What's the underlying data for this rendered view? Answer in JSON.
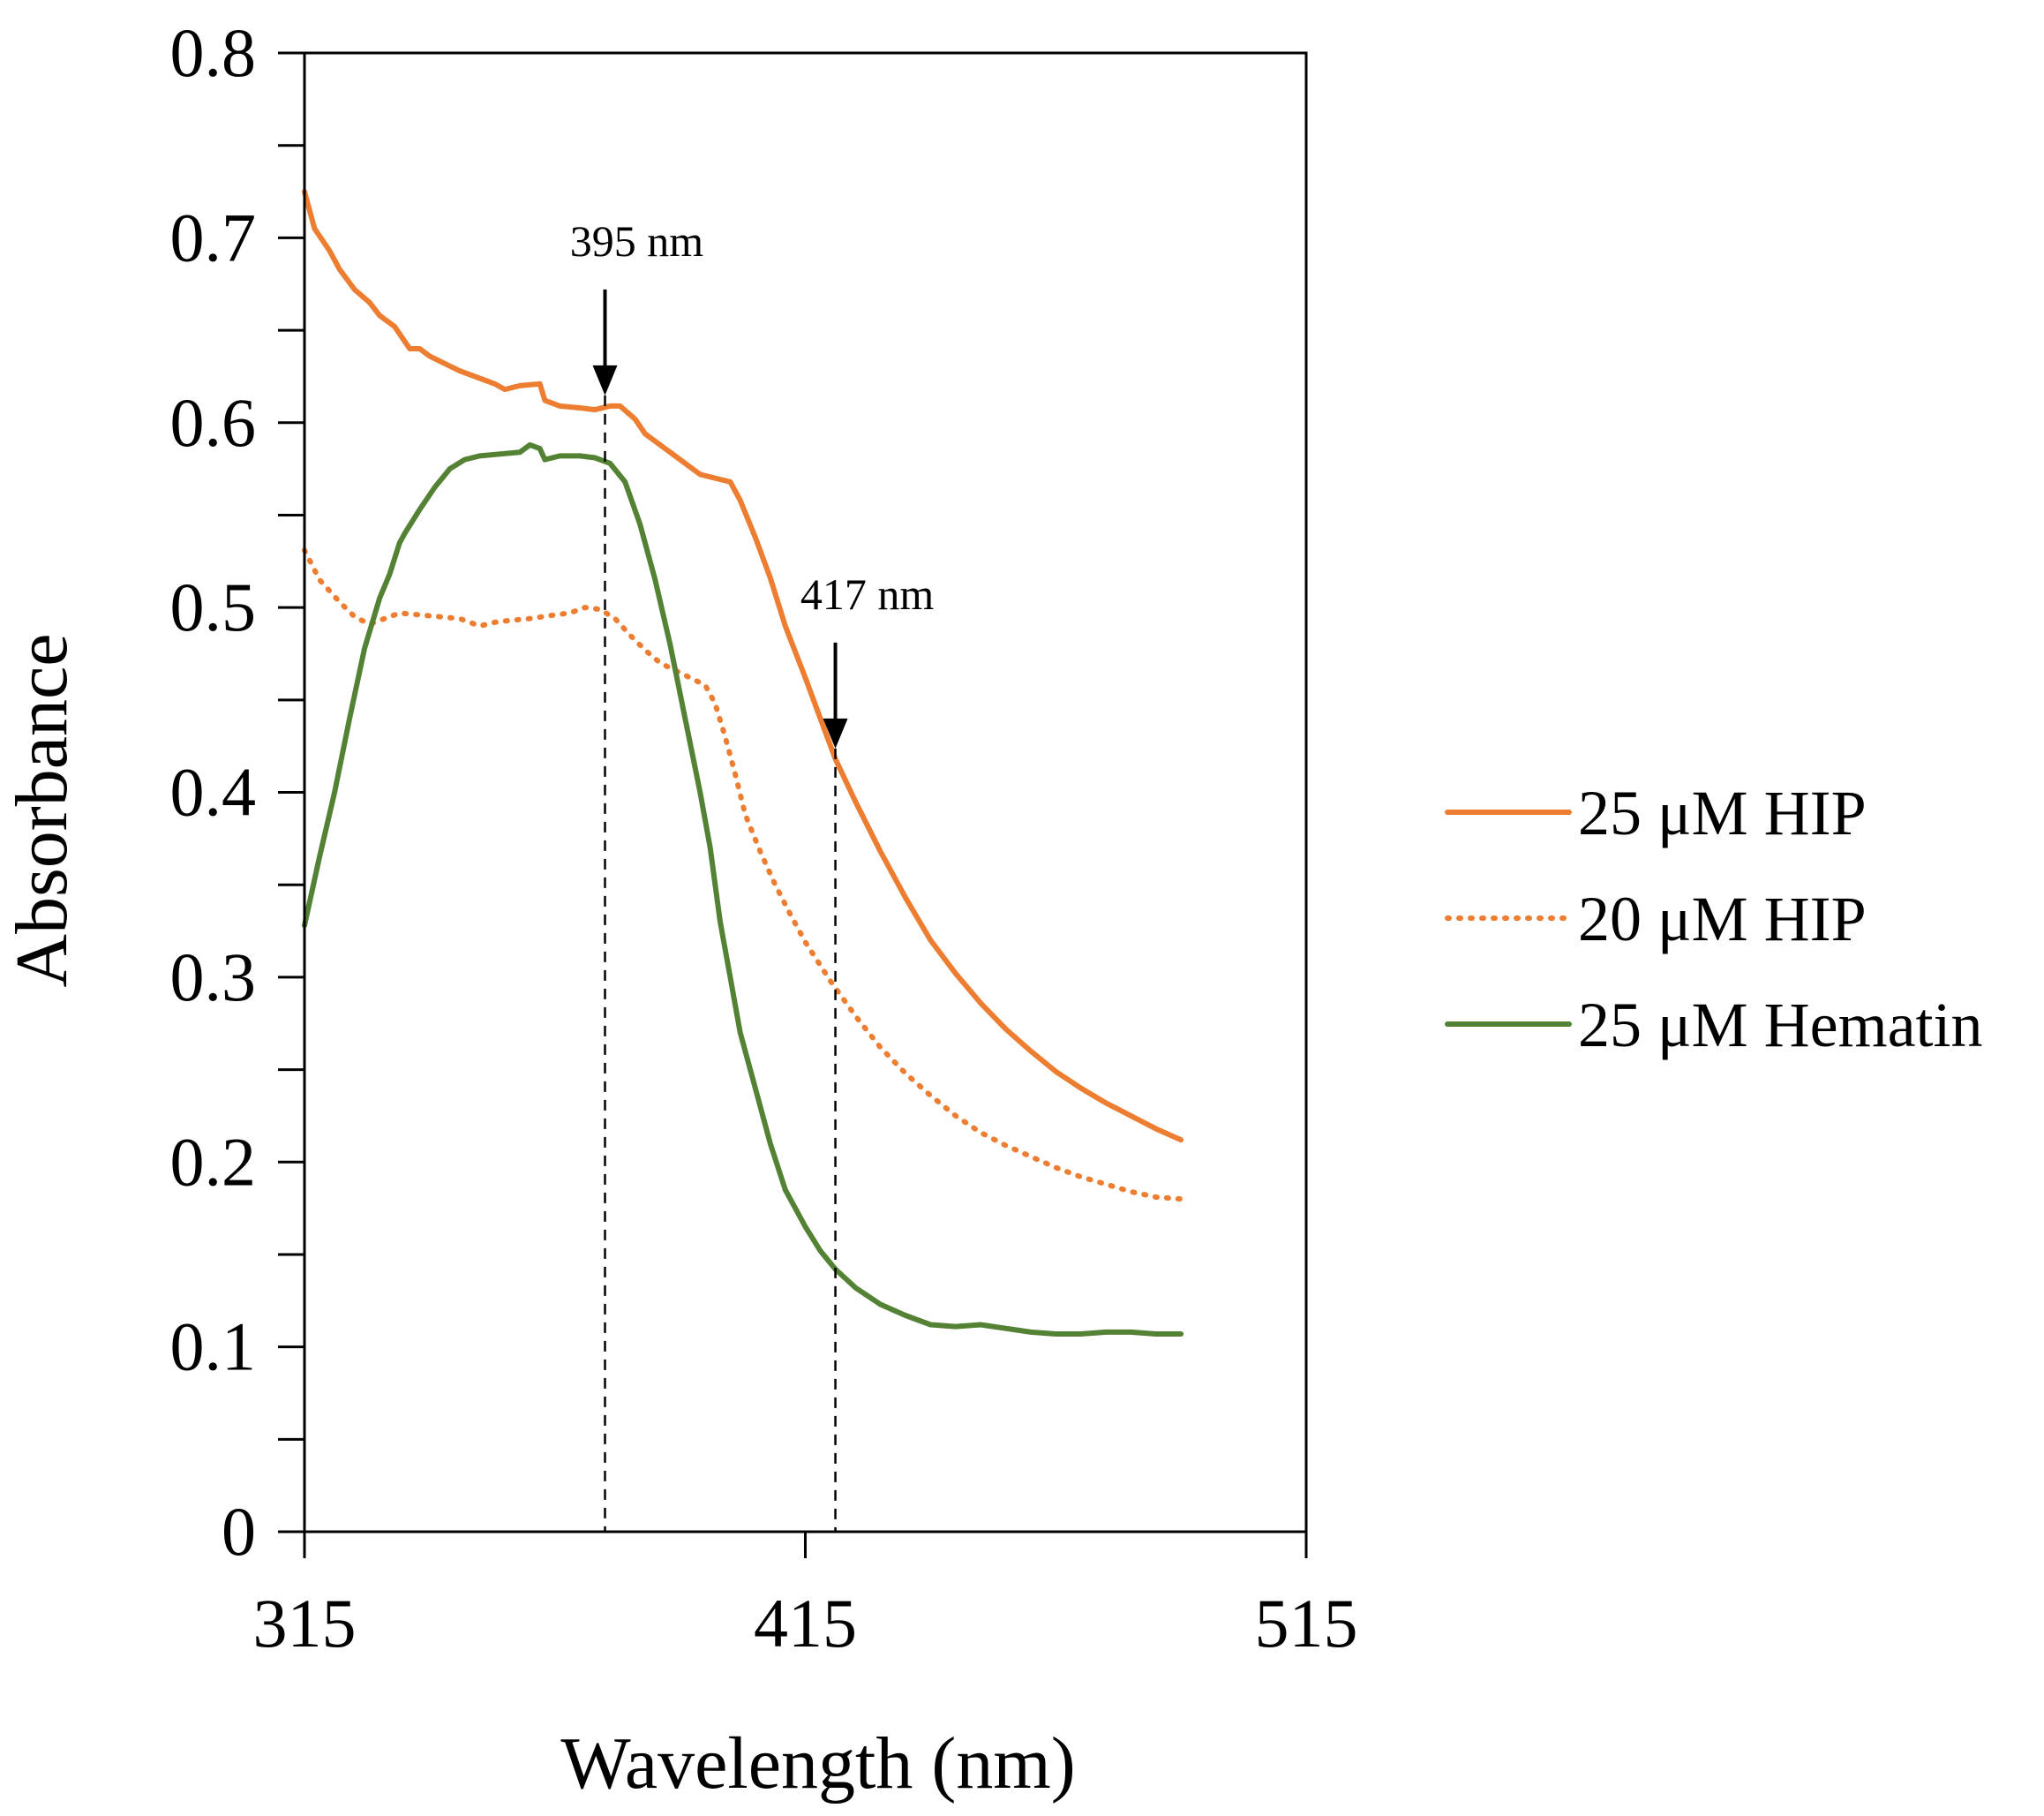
{
  "chart_data": {
    "type": "line",
    "title": "",
    "xlabel": "Wavelength (nm)",
    "ylabel": "Absorbance",
    "xlim": [
      315,
      515
    ],
    "ylim": [
      0,
      0.8
    ],
    "x_ticks": [
      "315",
      "415",
      "515"
    ],
    "y_ticks": [
      "0",
      "0.1",
      "0.2",
      "0.3",
      "0.4",
      "0.5",
      "0.6",
      "0.7",
      "0.8"
    ],
    "grid": false,
    "legend_position": "right",
    "series": [
      {
        "name": "25 μM HIP",
        "color": "#ED7D31",
        "style": "solid",
        "points": [
          [
            315,
            0.725
          ],
          [
            317,
            0.705
          ],
          [
            320,
            0.693
          ],
          [
            322,
            0.683
          ],
          [
            325,
            0.672
          ],
          [
            328,
            0.665
          ],
          [
            330,
            0.658
          ],
          [
            333,
            0.652
          ],
          [
            335,
            0.644
          ],
          [
            336,
            0.64
          ],
          [
            338,
            0.64
          ],
          [
            340,
            0.636
          ],
          [
            343,
            0.632
          ],
          [
            346,
            0.628
          ],
          [
            350,
            0.624
          ],
          [
            353,
            0.621
          ],
          [
            355,
            0.618
          ],
          [
            358,
            0.62
          ],
          [
            362,
            0.621
          ],
          [
            363,
            0.612
          ],
          [
            366,
            0.609
          ],
          [
            370,
            0.608
          ],
          [
            373,
            0.607
          ],
          [
            376,
            0.609
          ],
          [
            378,
            0.609
          ],
          [
            381,
            0.602
          ],
          [
            383,
            0.594
          ],
          [
            387,
            0.586
          ],
          [
            391,
            0.578
          ],
          [
            394,
            0.572
          ],
          [
            397,
            0.57
          ],
          [
            400,
            0.568
          ],
          [
            402,
            0.558
          ],
          [
            405,
            0.538
          ],
          [
            408,
            0.516
          ],
          [
            411,
            0.49
          ],
          [
            415,
            0.462
          ],
          [
            418,
            0.44
          ],
          [
            421,
            0.418
          ],
          [
            425,
            0.395
          ],
          [
            430,
            0.368
          ],
          [
            435,
            0.343
          ],
          [
            440,
            0.32
          ],
          [
            445,
            0.302
          ],
          [
            450,
            0.286
          ],
          [
            455,
            0.272
          ],
          [
            460,
            0.26
          ],
          [
            465,
            0.249
          ],
          [
            470,
            0.24
          ],
          [
            475,
            0.232
          ],
          [
            480,
            0.225
          ],
          [
            485,
            0.218
          ],
          [
            490,
            0.212
          ]
        ]
      },
      {
        "name": "20 μM HIP",
        "color": "#ED7D31",
        "style": "dotted",
        "points": [
          [
            315,
            0.531
          ],
          [
            318,
            0.515
          ],
          [
            322,
            0.503
          ],
          [
            325,
            0.495
          ],
          [
            328,
            0.491
          ],
          [
            331,
            0.494
          ],
          [
            334,
            0.497
          ],
          [
            338,
            0.496
          ],
          [
            342,
            0.495
          ],
          [
            346,
            0.494
          ],
          [
            350,
            0.49
          ],
          [
            353,
            0.492
          ],
          [
            356,
            0.493
          ],
          [
            360,
            0.494
          ],
          [
            365,
            0.496
          ],
          [
            368,
            0.497
          ],
          [
            371,
            0.5
          ],
          [
            374,
            0.499
          ],
          [
            377,
            0.494
          ],
          [
            380,
            0.485
          ],
          [
            383,
            0.477
          ],
          [
            386,
            0.47
          ],
          [
            389,
            0.466
          ],
          [
            392,
            0.462
          ],
          [
            395,
            0.458
          ],
          [
            397,
            0.448
          ],
          [
            399,
            0.43
          ],
          [
            401,
            0.41
          ],
          [
            403,
            0.388
          ],
          [
            406,
            0.368
          ],
          [
            409,
            0.35
          ],
          [
            412,
            0.334
          ],
          [
            415,
            0.319
          ],
          [
            420,
            0.298
          ],
          [
            425,
            0.279
          ],
          [
            430,
            0.262
          ],
          [
            435,
            0.248
          ],
          [
            440,
            0.236
          ],
          [
            445,
            0.225
          ],
          [
            450,
            0.216
          ],
          [
            455,
            0.209
          ],
          [
            460,
            0.203
          ],
          [
            465,
            0.197
          ],
          [
            470,
            0.192
          ],
          [
            475,
            0.188
          ],
          [
            480,
            0.184
          ],
          [
            485,
            0.181
          ],
          [
            490,
            0.18
          ]
        ]
      },
      {
        "name": "25 μM Hematin",
        "color": "#548235",
        "style": "solid",
        "points": [
          [
            315,
            0.328
          ],
          [
            318,
            0.365
          ],
          [
            321,
            0.4
          ],
          [
            324,
            0.44
          ],
          [
            327,
            0.478
          ],
          [
            330,
            0.505
          ],
          [
            332,
            0.518
          ],
          [
            334,
            0.535
          ],
          [
            335,
            0.54
          ],
          [
            338,
            0.553
          ],
          [
            341,
            0.565
          ],
          [
            344,
            0.575
          ],
          [
            347,
            0.58
          ],
          [
            350,
            0.582
          ],
          [
            354,
            0.583
          ],
          [
            358,
            0.584
          ],
          [
            360,
            0.588
          ],
          [
            362,
            0.586
          ],
          [
            363,
            0.58
          ],
          [
            366,
            0.582
          ],
          [
            370,
            0.582
          ],
          [
            373,
            0.581
          ],
          [
            376,
            0.578
          ],
          [
            379,
            0.568
          ],
          [
            382,
            0.545
          ],
          [
            385,
            0.515
          ],
          [
            388,
            0.48
          ],
          [
            391,
            0.44
          ],
          [
            394,
            0.4
          ],
          [
            396,
            0.37
          ],
          [
            398,
            0.33
          ],
          [
            400,
            0.3
          ],
          [
            402,
            0.27
          ],
          [
            405,
            0.24
          ],
          [
            408,
            0.21
          ],
          [
            411,
            0.185
          ],
          [
            415,
            0.165
          ],
          [
            418,
            0.152
          ],
          [
            421,
            0.142
          ],
          [
            425,
            0.132
          ],
          [
            430,
            0.123
          ],
          [
            435,
            0.117
          ],
          [
            440,
            0.112
          ],
          [
            445,
            0.111
          ],
          [
            450,
            0.112
          ],
          [
            455,
            0.11
          ],
          [
            460,
            0.108
          ],
          [
            465,
            0.107
          ],
          [
            470,
            0.107
          ],
          [
            475,
            0.108
          ],
          [
            480,
            0.108
          ],
          [
            485,
            0.107
          ],
          [
            490,
            0.107
          ]
        ]
      }
    ],
    "annotations": [
      {
        "label": "395 nm",
        "x": 375
      },
      {
        "label": "417 nm",
        "x": 421
      }
    ]
  }
}
